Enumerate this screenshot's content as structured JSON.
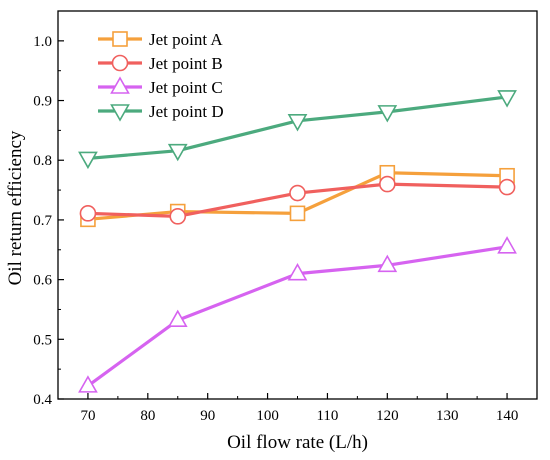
{
  "chart_data": {
    "type": "line",
    "title": "",
    "xlabel": "Oil flow rate (L/h)",
    "ylabel": "Oil return efficiency",
    "xlim": [
      65,
      145
    ],
    "ylim": [
      0.4,
      1.05
    ],
    "xticks": [
      70,
      80,
      90,
      100,
      110,
      120,
      130,
      140
    ],
    "yticks": [
      0.4,
      0.5,
      0.6,
      0.7,
      0.8,
      0.9,
      1.0
    ],
    "xtick_labels": [
      "70",
      "80",
      "90",
      "100",
      "110",
      "120",
      "130",
      "140"
    ],
    "ytick_labels": [
      "0.4",
      "0.5",
      "0.6",
      "0.7",
      "0.8",
      "0.9",
      "1.0"
    ],
    "x": [
      70,
      85,
      105,
      120,
      140
    ],
    "grid": false,
    "legend_position": "top-left",
    "series": [
      {
        "name": "Jet point A",
        "marker": "square",
        "color": "#f5a03c",
        "values": [
          0.701,
          0.714,
          0.711,
          0.779,
          0.774
        ]
      },
      {
        "name": "Jet point B",
        "marker": "circle",
        "color": "#f0605e",
        "values": [
          0.711,
          0.706,
          0.745,
          0.76,
          0.755
        ]
      },
      {
        "name": "Jet point C",
        "marker": "triangle-up",
        "color": "#d663f0",
        "values": [
          0.422,
          0.532,
          0.61,
          0.624,
          0.655
        ]
      },
      {
        "name": "Jet point D",
        "marker": "triangle-down",
        "color": "#4caa7e",
        "values": [
          0.803,
          0.816,
          0.866,
          0.881,
          0.906
        ]
      }
    ]
  }
}
